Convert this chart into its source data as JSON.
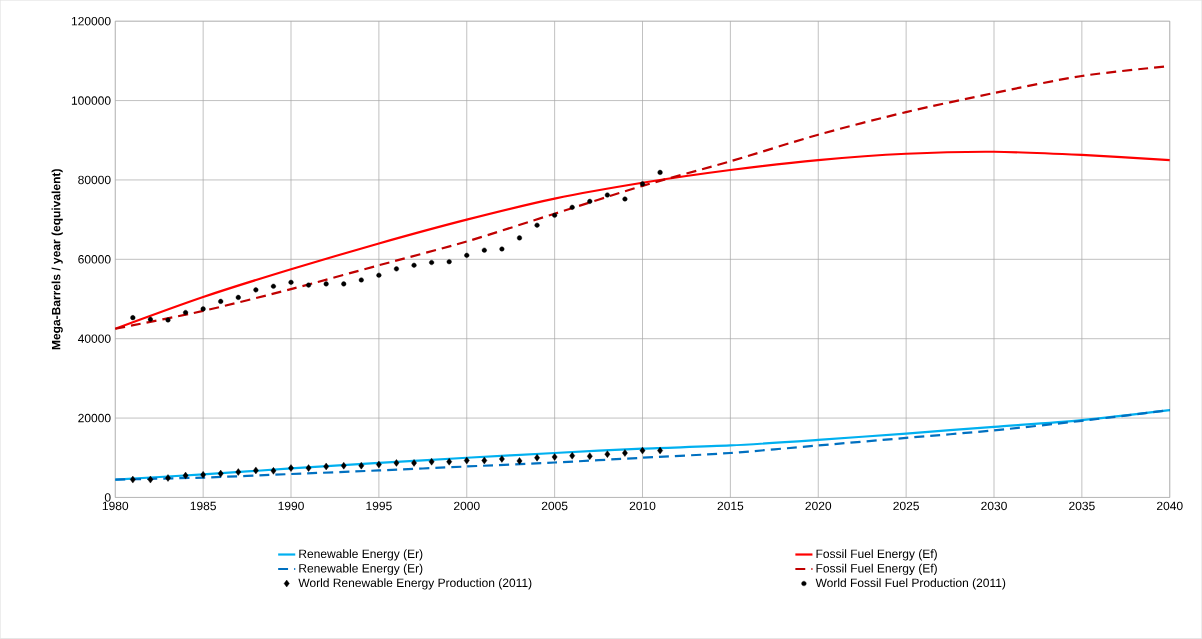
{
  "chart_data": {
    "type": "line",
    "ylabel": "Mega-Barrels / year (equivalent)",
    "xlim": [
      1980,
      2040
    ],
    "ylim": [
      0,
      120000
    ],
    "xticks": [
      1980,
      1985,
      1990,
      1995,
      2000,
      2005,
      2010,
      2015,
      2020,
      2025,
      2030,
      2035,
      2040
    ],
    "yticks": [
      0,
      20000,
      40000,
      60000,
      80000,
      100000,
      120000
    ],
    "grid": true,
    "legend": "bottom",
    "series": [
      {
        "name": "Renewable Energy (Er)",
        "color": "#00b0f0",
        "line_style": "solid",
        "marker": "none",
        "x": [
          1980,
          1985,
          1990,
          1995,
          2000,
          2005,
          2010,
          2015,
          2020,
          2025,
          2030,
          2035,
          2040
        ],
        "values": [
          4500,
          5800,
          7300,
          8700,
          10000,
          11200,
          12300,
          13100,
          14500,
          16100,
          17800,
          19500,
          22000
        ]
      },
      {
        "name": "Fossil Fuel Energy (Ef)",
        "color": "#ff0000",
        "line_style": "solid",
        "marker": "none",
        "x": [
          1980,
          1985,
          1990,
          1995,
          2000,
          2005,
          2010,
          2015,
          2020,
          2025,
          2030,
          2035,
          2040
        ],
        "values": [
          42500,
          50500,
          57500,
          64000,
          70000,
          75300,
          79300,
          82500,
          85000,
          86600,
          87100,
          86300,
          85000
        ]
      },
      {
        "name": "Renewable Energy (Er)",
        "color": "#0070c0",
        "line_style": "dashed",
        "marker": "none",
        "x": [
          1980,
          1985,
          1990,
          1995,
          2000,
          2005,
          2010,
          2015,
          2020,
          2025,
          2030,
          2035,
          2040
        ],
        "values": [
          4500,
          5000,
          5900,
          6800,
          7800,
          8800,
          10000,
          11200,
          13100,
          15000,
          16900,
          19300,
          22000
        ]
      },
      {
        "name": "Fossil Fuel Energy (Ef)",
        "color": "#c00000",
        "line_style": "dashed",
        "marker": "none",
        "x": [
          1980,
          1985,
          1990,
          1995,
          2000,
          2005,
          2010,
          2015,
          2020,
          2025,
          2030,
          2035,
          2040
        ],
        "values": [
          42500,
          47000,
          52500,
          58500,
          64500,
          71500,
          78500,
          84700,
          91400,
          97100,
          101900,
          106200,
          108700
        ]
      },
      {
        "name": "World Renewable Energy Production (2011)",
        "type": "scatter",
        "color": "#000000",
        "marker": "diamond",
        "x": [
          1981,
          1982,
          1983,
          1984,
          1985,
          1986,
          1987,
          1988,
          1989,
          1990,
          1991,
          1992,
          1993,
          1994,
          1995,
          1996,
          1997,
          1998,
          1999,
          2000,
          2001,
          2002,
          2003,
          2004,
          2005,
          2006,
          2007,
          2008,
          2009,
          2010,
          2011
        ],
        "values": [
          4500,
          4500,
          4900,
          5500,
          5700,
          6000,
          6400,
          6800,
          6700,
          7400,
          7400,
          7800,
          8000,
          8000,
          8300,
          8700,
          8700,
          9000,
          9000,
          9300,
          9300,
          9700,
          9200,
          10000,
          10200,
          10500,
          10400,
          10900,
          11200,
          11800,
          11800
        ]
      },
      {
        "name": "World Fossil Fuel Production (2011)",
        "type": "scatter",
        "color": "#000000",
        "marker": "circle",
        "x": [
          1981,
          1982,
          1983,
          1984,
          1985,
          1986,
          1987,
          1988,
          1989,
          1990,
          1991,
          1992,
          1993,
          1994,
          1995,
          1996,
          1997,
          1998,
          1999,
          2000,
          2001,
          2002,
          2003,
          2004,
          2005,
          2006,
          2007,
          2008,
          2009,
          2010,
          2011
        ],
        "values": [
          45300,
          44900,
          44700,
          46600,
          47500,
          49400,
          50400,
          52300,
          53200,
          54200,
          53500,
          53800,
          53800,
          54800,
          56000,
          57600,
          58500,
          59200,
          59400,
          61000,
          62300,
          62600,
          65400,
          68600,
          71100,
          73100,
          74600,
          76200,
          75200,
          79000,
          81900
        ]
      }
    ]
  }
}
